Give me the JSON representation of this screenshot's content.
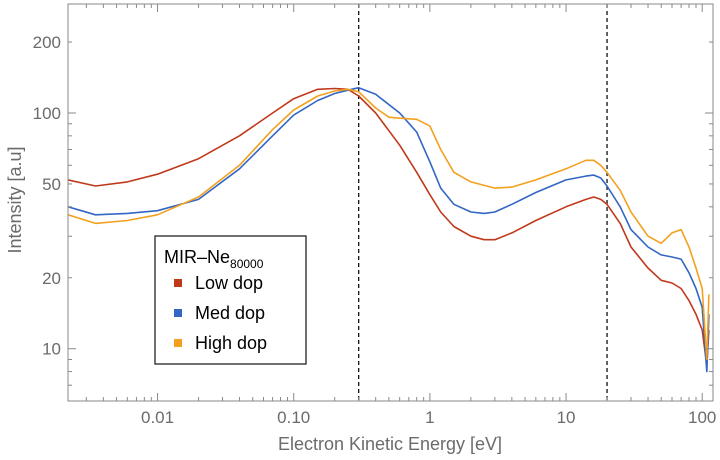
{
  "chart_data": {
    "type": "line",
    "title": "",
    "xlabel": "Electron Kinetic Energy [eV]",
    "ylabel": "Intensity [a.u]",
    "x_scale": "log",
    "y_scale": "log",
    "xlim": [
      0.0022,
      120
    ],
    "ylim": [
      6,
      290
    ],
    "x_ticks": [
      {
        "value": 0.01,
        "label": "0.01"
      },
      {
        "value": 0.1,
        "label": "0.10"
      },
      {
        "value": 1,
        "label": "1"
      },
      {
        "value": 10,
        "label": "10"
      },
      {
        "value": 100,
        "label": "100"
      }
    ],
    "y_ticks": [
      {
        "value": 10,
        "label": "10"
      },
      {
        "value": 20,
        "label": "20"
      },
      {
        "value": 50,
        "label": "50"
      },
      {
        "value": 100,
        "label": "100"
      },
      {
        "value": 200,
        "label": "200"
      }
    ],
    "vertical_lines": [
      0.3,
      20
    ],
    "grid": false,
    "legend": {
      "title": "MIR–Ne",
      "title_subscript": "80000",
      "placement": "left-center"
    },
    "series": [
      {
        "name": "Low dop",
        "color": "#c0391b",
        "points": [
          [
            0.0022,
            52
          ],
          [
            0.0035,
            49
          ],
          [
            0.006,
            51
          ],
          [
            0.01,
            55
          ],
          [
            0.02,
            64
          ],
          [
            0.04,
            80
          ],
          [
            0.07,
            100
          ],
          [
            0.1,
            115
          ],
          [
            0.15,
            126
          ],
          [
            0.2,
            127
          ],
          [
            0.25,
            126
          ],
          [
            0.3,
            118
          ],
          [
            0.4,
            100
          ],
          [
            0.6,
            73
          ],
          [
            0.8,
            56
          ],
          [
            1.0,
            45
          ],
          [
            1.2,
            38
          ],
          [
            1.5,
            33
          ],
          [
            2.0,
            30
          ],
          [
            2.5,
            29
          ],
          [
            3.0,
            29
          ],
          [
            4.0,
            31
          ],
          [
            6.0,
            35
          ],
          [
            10.0,
            40
          ],
          [
            14.0,
            43
          ],
          [
            16.0,
            44
          ],
          [
            18.0,
            43
          ],
          [
            20.0,
            41
          ],
          [
            25.0,
            34
          ],
          [
            30.0,
            27
          ],
          [
            40.0,
            22
          ],
          [
            50.0,
            19.5
          ],
          [
            60.0,
            19
          ],
          [
            70.0,
            18
          ],
          [
            80.0,
            16
          ],
          [
            90.0,
            14
          ],
          [
            100.0,
            12
          ],
          [
            108.0,
            8.5
          ],
          [
            112.0,
            12
          ]
        ]
      },
      {
        "name": "Med dop",
        "color": "#3366c4",
        "points": [
          [
            0.0022,
            40
          ],
          [
            0.0035,
            37
          ],
          [
            0.006,
            37.5
          ],
          [
            0.01,
            38.5
          ],
          [
            0.02,
            43
          ],
          [
            0.04,
            58
          ],
          [
            0.07,
            80
          ],
          [
            0.1,
            98
          ],
          [
            0.15,
            113
          ],
          [
            0.2,
            121
          ],
          [
            0.25,
            125
          ],
          [
            0.3,
            128
          ],
          [
            0.4,
            120
          ],
          [
            0.6,
            100
          ],
          [
            0.8,
            83
          ],
          [
            1.0,
            62
          ],
          [
            1.2,
            48
          ],
          [
            1.5,
            41
          ],
          [
            2.0,
            38
          ],
          [
            2.5,
            37.5
          ],
          [
            3.0,
            38
          ],
          [
            4.0,
            41
          ],
          [
            6.0,
            46
          ],
          [
            10.0,
            52
          ],
          [
            14.0,
            54
          ],
          [
            16.0,
            54.5
          ],
          [
            18.0,
            53
          ],
          [
            20.0,
            49
          ],
          [
            25.0,
            40
          ],
          [
            30.0,
            32
          ],
          [
            40.0,
            27
          ],
          [
            50.0,
            25
          ],
          [
            60.0,
            24.5
          ],
          [
            70.0,
            24
          ],
          [
            80.0,
            21
          ],
          [
            90.0,
            18
          ],
          [
            100.0,
            15
          ],
          [
            108.0,
            8
          ],
          [
            112.0,
            14
          ]
        ]
      },
      {
        "name": "High dop",
        "color": "#f2a11f",
        "points": [
          [
            0.0022,
            37
          ],
          [
            0.0035,
            34
          ],
          [
            0.006,
            35
          ],
          [
            0.01,
            37
          ],
          [
            0.02,
            44
          ],
          [
            0.04,
            60
          ],
          [
            0.07,
            85
          ],
          [
            0.1,
            103
          ],
          [
            0.15,
            118
          ],
          [
            0.2,
            124
          ],
          [
            0.25,
            126
          ],
          [
            0.3,
            123
          ],
          [
            0.4,
            105
          ],
          [
            0.5,
            96
          ],
          [
            0.6,
            95
          ],
          [
            0.8,
            94
          ],
          [
            1.0,
            88
          ],
          [
            1.2,
            70
          ],
          [
            1.5,
            56
          ],
          [
            2.0,
            51
          ],
          [
            3.0,
            48
          ],
          [
            4.0,
            48.5
          ],
          [
            6.0,
            52
          ],
          [
            10.0,
            58
          ],
          [
            14.0,
            63
          ],
          [
            16.0,
            63
          ],
          [
            18.0,
            60
          ],
          [
            20.0,
            56
          ],
          [
            25.0,
            47
          ],
          [
            30.0,
            38
          ],
          [
            40.0,
            30
          ],
          [
            50.0,
            28
          ],
          [
            60.0,
            31
          ],
          [
            70.0,
            32
          ],
          [
            80.0,
            27
          ],
          [
            90.0,
            22
          ],
          [
            100.0,
            18
          ],
          [
            108.0,
            9
          ],
          [
            112.0,
            17
          ]
        ]
      }
    ]
  }
}
